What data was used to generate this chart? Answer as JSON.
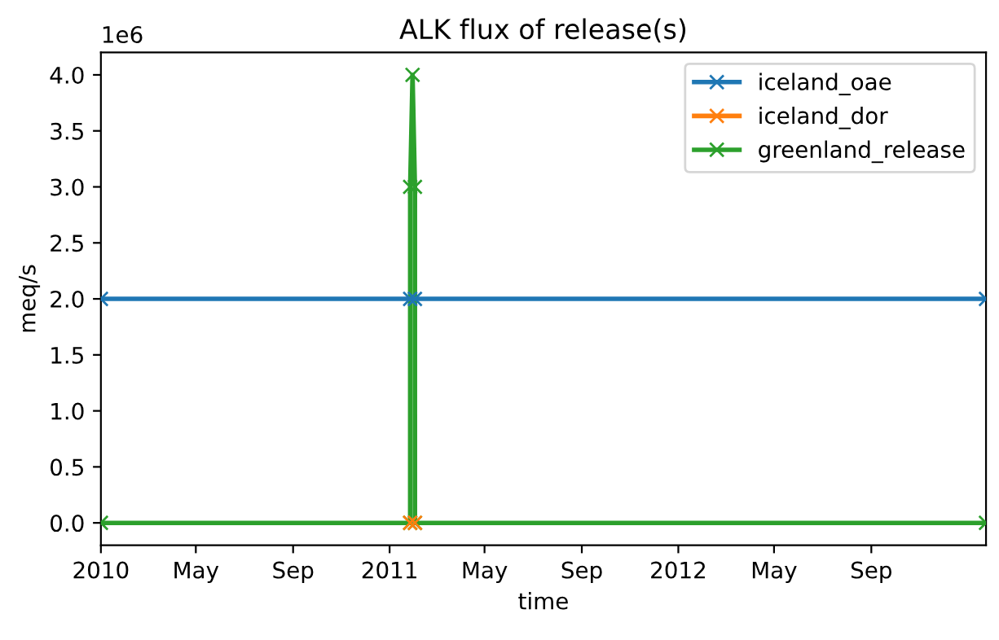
{
  "chart_data": {
    "type": "line",
    "title": "ALK flux of release(s)",
    "xlabel": "time",
    "ylabel": "meq/s",
    "annotations": [
      "1e6"
    ],
    "series": [
      {
        "name": "iceland_oae",
        "color": "#1f77b4",
        "x": [
          "2010-01-01",
          "2011-01-27",
          "2011-02-02",
          "2013-01-24"
        ],
        "values": [
          2,
          2,
          2,
          2
        ]
      },
      {
        "name": "iceland_dor",
        "type": "scatter",
        "color": "#ff7f0e",
        "x": [
          "2011-01-27",
          "2011-02-02"
        ],
        "values": [
          0,
          0
        ]
      },
      {
        "name": "greenland_release",
        "color": "#2ca02c",
        "x": [
          "2010-01-01",
          "2011-01-27",
          "2011-01-27",
          "2011-01-30",
          "2011-02-02",
          "2011-02-02",
          "2013-01-24"
        ],
        "values": [
          0,
          0,
          3,
          4,
          3,
          0,
          0
        ]
      }
    ],
    "xlim": [
      "2010-01-01",
      "2013-01-24"
    ],
    "xticks": [
      {
        "value": "2010-01-01",
        "label": "2010"
      },
      {
        "value": "2010-05-01",
        "label": "May"
      },
      {
        "value": "2010-09-01",
        "label": "Sep"
      },
      {
        "value": "2011-01-01",
        "label": "2011"
      },
      {
        "value": "2011-05-01",
        "label": "May"
      },
      {
        "value": "2011-09-01",
        "label": "Sep"
      },
      {
        "value": "2012-01-01",
        "label": "2012"
      },
      {
        "value": "2012-05-01",
        "label": "May"
      },
      {
        "value": "2012-09-01",
        "label": "Sep"
      }
    ],
    "ylim": [
      -0.2,
      4.2
    ],
    "yticks": [
      {
        "value": 0,
        "label": "0.0"
      },
      0.5,
      {
        "value": 1,
        "label": "1.0"
      },
      1.5,
      {
        "value": 2,
        "label": "2.0"
      },
      2.5,
      {
        "value": 3,
        "label": "3.0"
      },
      3.5,
      {
        "value": 4,
        "label": "4.0"
      }
    ],
    "legend": "top right",
    "marker": "cross",
    "line_style": "solid"
  }
}
